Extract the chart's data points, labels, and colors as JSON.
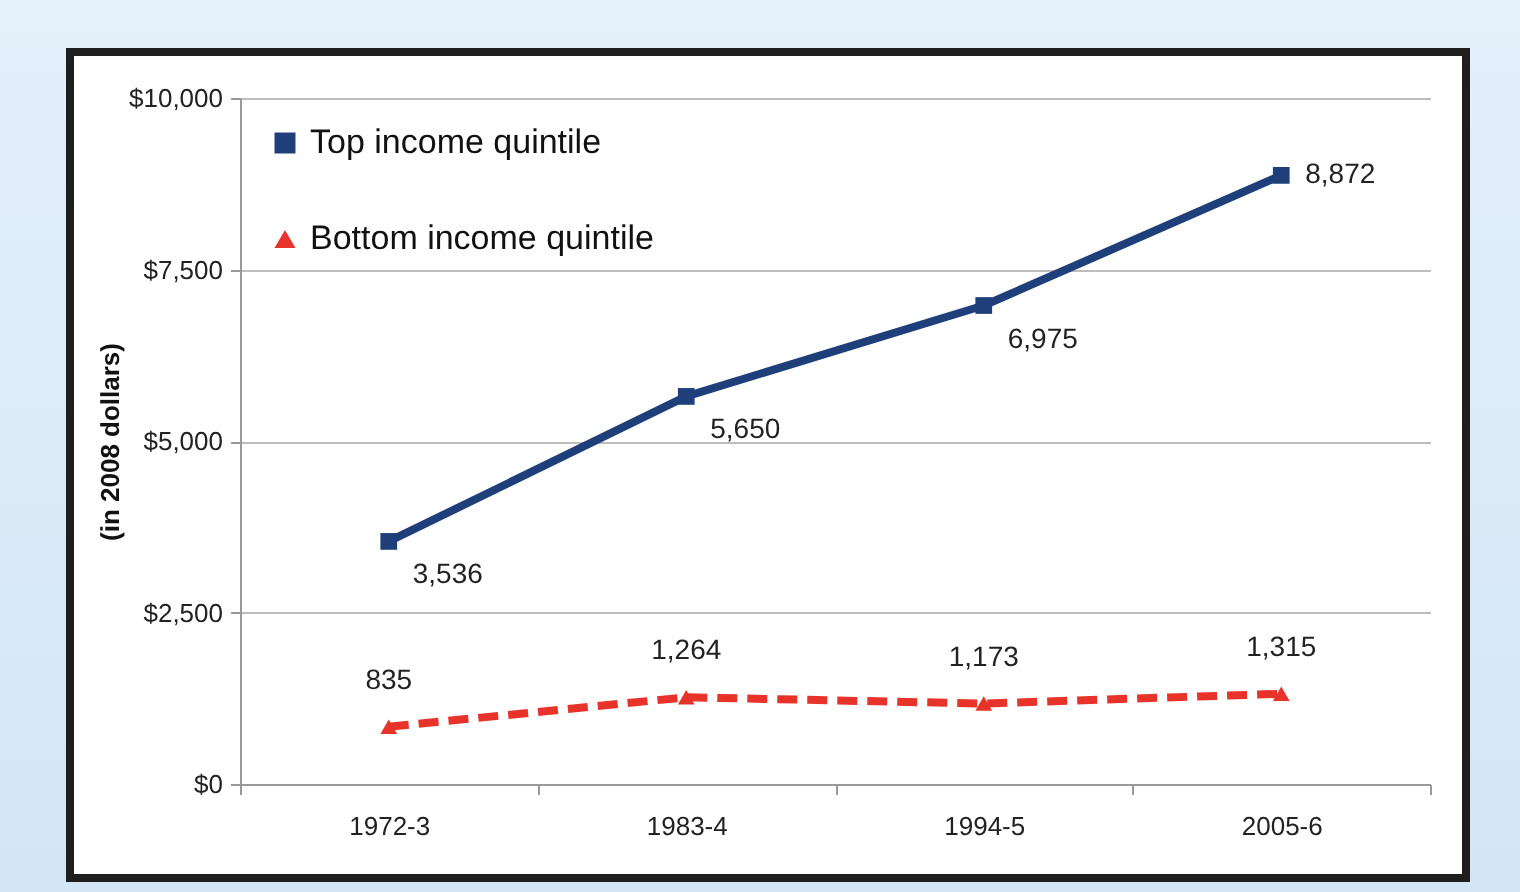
{
  "chart_data": {
    "type": "line",
    "ylabel": "(in 2008 dollars)",
    "categories": [
      "1972-3",
      "1983-4",
      "1994-5",
      "2005-6"
    ],
    "series": [
      {
        "name": "Top income quintile",
        "color": "#1f3f7a",
        "values": [
          3536,
          5650,
          6975,
          8872
        ],
        "value_labels": [
          "3,536",
          "5,650",
          "6,975",
          "8,872"
        ],
        "marker": "square",
        "line_style": "solid"
      },
      {
        "name": "Bottom income quintile",
        "color": "#e8332a",
        "values": [
          835,
          1264,
          1173,
          1315
        ],
        "value_labels": [
          "835",
          "1,264",
          "1,173",
          "1,315"
        ],
        "marker": "triangle",
        "line_style": "dashed"
      }
    ],
    "ylim": [
      0,
      10000
    ],
    "yticks": [
      {
        "value": 0,
        "label": "$0"
      },
      {
        "value": 2500,
        "label": "$2,500"
      },
      {
        "value": 5000,
        "label": "$5,000"
      },
      {
        "value": 7500,
        "label": "$7,500"
      },
      {
        "value": 10000,
        "label": "$10,000"
      }
    ],
    "grid": "y",
    "legend": "top left"
  }
}
